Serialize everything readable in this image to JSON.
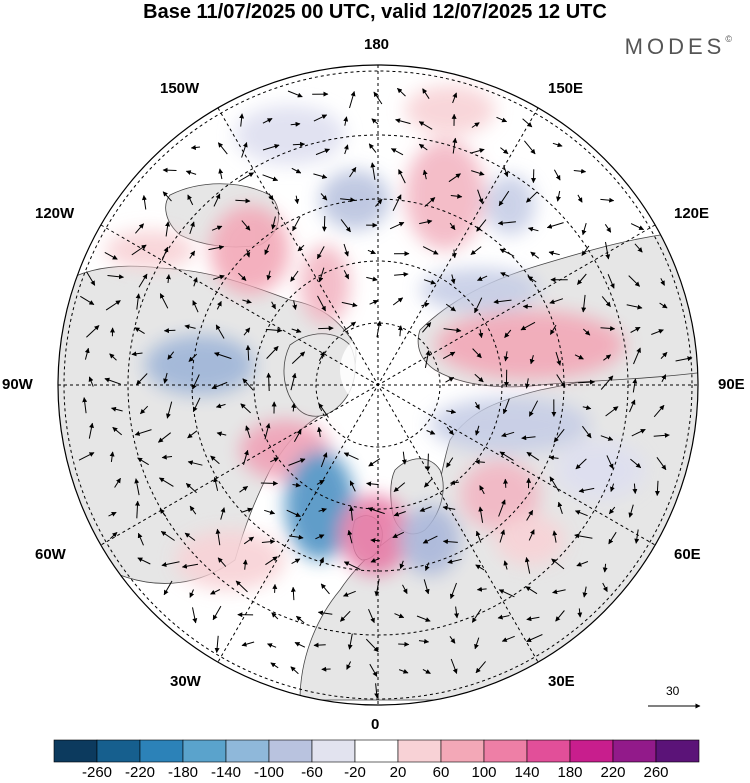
{
  "title": "Base 11/07/2025 00 UTC, valid 12/07/2025 12 UTC",
  "brand": "MODES",
  "brand_mark": "©",
  "longitude_labels": {
    "top": "180",
    "bottom": "0",
    "left": "90W",
    "right": "90E",
    "nw_upper": "150W",
    "nw_lower": "120W",
    "ne_upper": "150E",
    "ne_lower": "120E",
    "sw_upper": "60W",
    "sw_lower": "30W",
    "se_upper": "60E",
    "se_lower": "30E"
  },
  "reference_vector": {
    "label": "30"
  },
  "colorbar": {
    "ticks": [
      "-260",
      "-220",
      "-180",
      "-140",
      "-100",
      "-60",
      "-20",
      "20",
      "60",
      "100",
      "140",
      "180",
      "220",
      "260"
    ],
    "colors": [
      "#0c3a5e",
      "#165f8e",
      "#2c82b8",
      "#5aa3cc",
      "#8fb8da",
      "#b9c3df",
      "#e2e3ef",
      "#ffffff",
      "#f8d2d6",
      "#f3a8b7",
      "#ee7fa6",
      "#e24f99",
      "#c81e8d",
      "#921a8a",
      "#5b1378"
    ]
  },
  "colors": {
    "land": "#e6e6e6",
    "ocean": "#ffffff",
    "grid": "#000000",
    "coast": "#444444"
  },
  "anomalies": [
    {
      "id": "pacific-neg",
      "value": -60
    },
    {
      "id": "bering-pos",
      "value": 60
    },
    {
      "id": "siberia-pos",
      "value": 120
    },
    {
      "id": "siberia-neg",
      "value": -60
    },
    {
      "id": "canada-pos",
      "value": 80
    },
    {
      "id": "canada-neg",
      "value": -120
    },
    {
      "id": "atlantic-neg",
      "value": -200
    },
    {
      "id": "greenland-pos",
      "value": 140
    },
    {
      "id": "europe-pos",
      "value": 160
    },
    {
      "id": "scandinavia-neg",
      "value": -100
    },
    {
      "id": "russia-pos",
      "value": 60
    }
  ]
}
